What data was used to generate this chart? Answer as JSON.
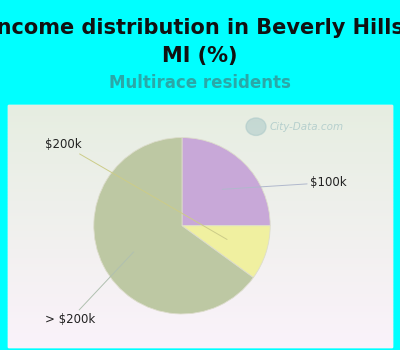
{
  "title_line1": "Income distribution in Beverly Hills,",
  "title_line2": "MI (%)",
  "subtitle": "Multirace residents",
  "slices": [
    {
      "label": "$100k",
      "value": 25,
      "color": "#c8a8d8"
    },
    {
      "label": "$200k",
      "value": 10,
      "color": "#f0f0a0"
    },
    {
      "label": "> $200k",
      "value": 65,
      "color": "#bdc8a3"
    }
  ],
  "bg_cyan": "#00ffff",
  "chart_bg_topleft": "#d8f0e8",
  "chart_bg_botright": "#e8f5f0",
  "subtitle_color": "#2aa8a8",
  "watermark_color": "#aac8c8",
  "label_color": "#222222",
  "title_fontsize": 15,
  "subtitle_fontsize": 12
}
